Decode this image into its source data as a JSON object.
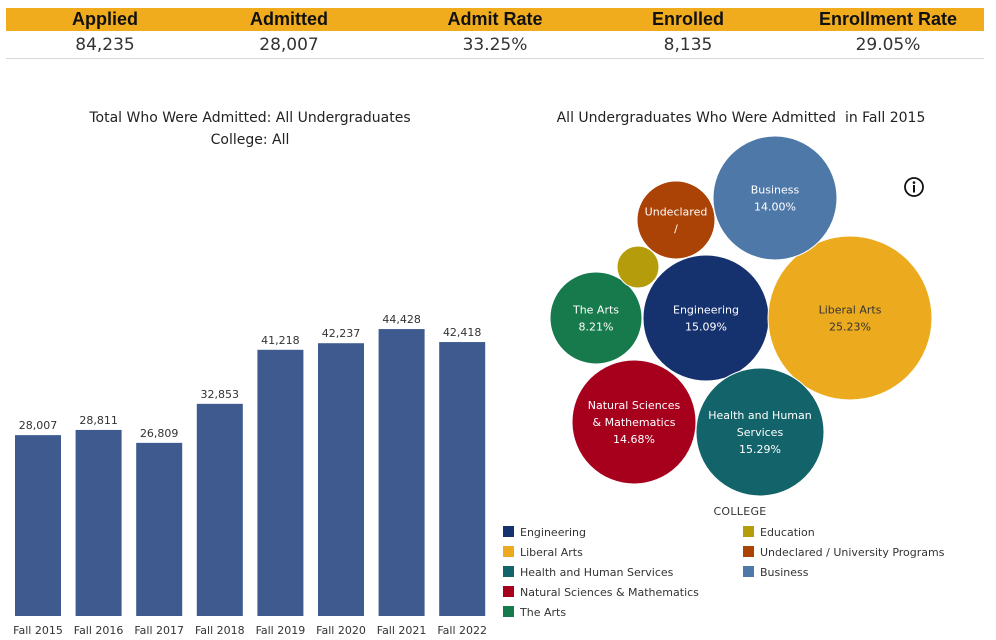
{
  "kpis": [
    {
      "label": "Applied",
      "value": "84,235"
    },
    {
      "label": "Admitted",
      "value": "28,007"
    },
    {
      "label": "Admit Rate",
      "value": "33.25%"
    },
    {
      "label": "Enrolled",
      "value": "8,135"
    },
    {
      "label": "Enrollment Rate",
      "value": "29.05%"
    }
  ],
  "colors": {
    "header_bg": "#f0ac1c",
    "bar": "#3e5a8e"
  },
  "info_icon": "info-circle-icon",
  "chart_data": [
    {
      "type": "bar",
      "title": "Total Who Were Admitted: All Undergraduates",
      "subtitle": "College: All",
      "categories": [
        "Fall 2015",
        "Fall 2016",
        "Fall 2017",
        "Fall 2018",
        "Fall 2019",
        "Fall 2020",
        "Fall 2021",
        "Fall 2022"
      ],
      "values": [
        28007,
        28811,
        26809,
        32853,
        41218,
        42237,
        44428,
        42418
      ],
      "data_labels": [
        "28,007",
        "28,811",
        "26,809",
        "32,853",
        "41,218",
        "42,237",
        "44,428",
        "42,418"
      ],
      "ylim": [
        0,
        48000
      ],
      "grid": false,
      "color": "#3e5a8e"
    },
    {
      "type": "bubble",
      "title": "All Undergraduates Who Were Admitted  in Fall 2015",
      "legend_title": "COLLEGE",
      "legend_placement": "bottom",
      "series": [
        {
          "name": "Engineering",
          "value": 15.09,
          "label": "Engineering",
          "display": "15.09%",
          "color": "#15326f"
        },
        {
          "name": "Liberal Arts",
          "value": 25.23,
          "label": "Liberal Arts",
          "display": "25.23%",
          "color": "#ecab1f"
        },
        {
          "name": "Health and Human Services",
          "value": 15.29,
          "label": "Health and Human\nServices",
          "display": "15.29%",
          "color": "#13636b"
        },
        {
          "name": "Natural Sciences & Mathematics",
          "value": 14.68,
          "label": "Natural Sciences\n& Mathematics",
          "display": "14.68%",
          "color": "#a6001c"
        },
        {
          "name": "The Arts",
          "value": 8.21,
          "label": "The Arts",
          "display": "8.21%",
          "color": "#177a4c"
        },
        {
          "name": "Education",
          "value": null,
          "label": "",
          "display": "",
          "color": "#b49c0b"
        },
        {
          "name": "Undeclared / University Programs",
          "value": null,
          "label": "Undeclared\n/",
          "display": "",
          "color": "#aa4305"
        },
        {
          "name": "Business",
          "value": 14.0,
          "label": "Business",
          "display": "14.00%",
          "color": "#4e78a8"
        }
      ]
    }
  ]
}
